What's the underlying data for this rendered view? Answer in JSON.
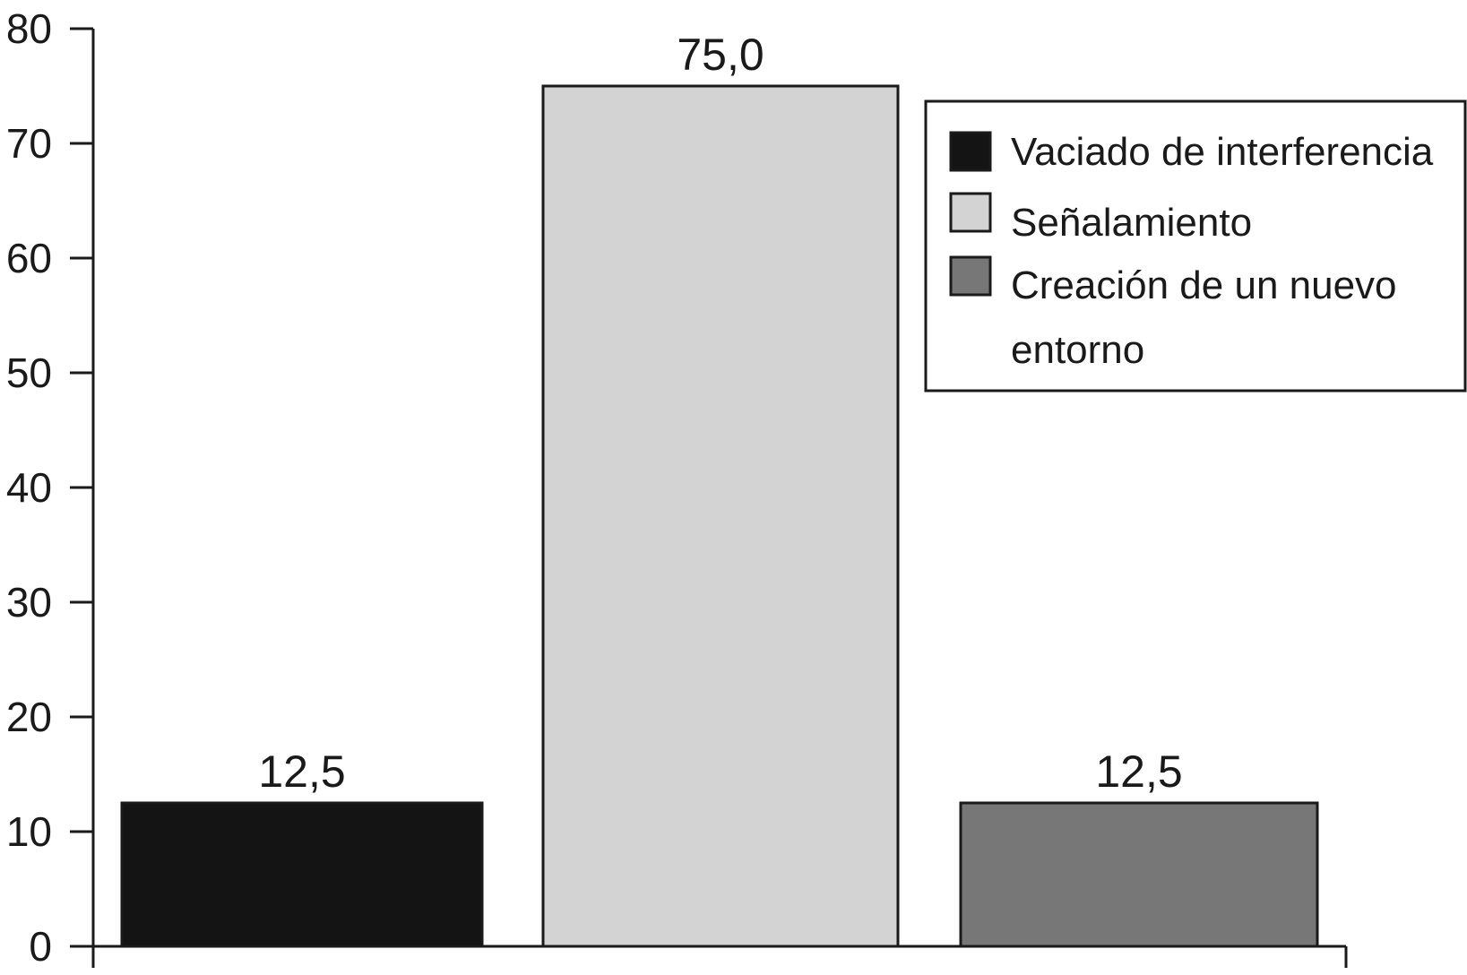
{
  "chart_data": {
    "type": "bar",
    "categories": [
      "Vaciado de interferencia",
      "Señalamiento",
      "Creación de un nuevo entorno"
    ],
    "values": [
      12.5,
      75.0,
      12.5
    ],
    "value_labels": [
      "12,5",
      "75,0",
      "12,5"
    ],
    "colors": [
      "#141414",
      "#d3d3d3",
      "#777777"
    ],
    "title": "",
    "xlabel": "",
    "ylabel": "",
    "ylim": [
      0,
      80
    ],
    "yticks": [
      0,
      10,
      20,
      30,
      40,
      50,
      60,
      70,
      80
    ],
    "grid": false,
    "legend": {
      "position": "top-right",
      "entries": [
        {
          "lines": [
            "Vaciado de interferencia"
          ],
          "color": "#141414"
        },
        {
          "lines": [
            "Señalamiento"
          ],
          "color": "#d3d3d3"
        },
        {
          "lines": [
            "Creación de un nuevo",
            "entorno"
          ],
          "color": "#777777"
        }
      ]
    }
  }
}
